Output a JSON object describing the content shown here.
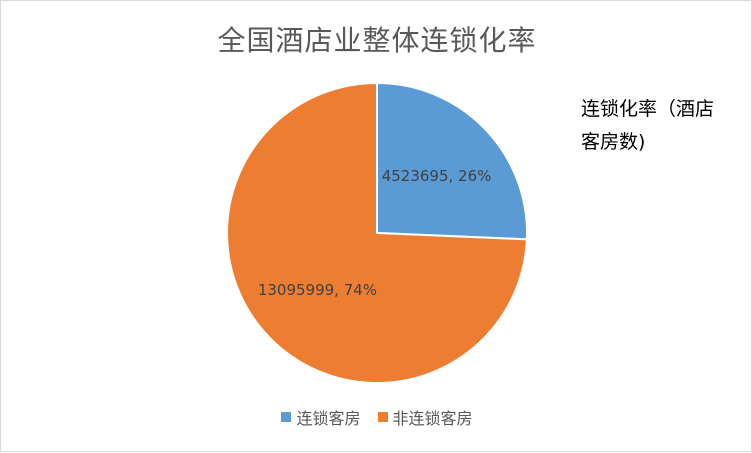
{
  "chart_data": {
    "type": "pie",
    "title": "全国酒店业整体连锁化率",
    "series_name": "连锁化率（酒店客房数)",
    "categories": [
      "连锁客房",
      "非连锁客房"
    ],
    "values": [
      4523695,
      13095999
    ],
    "percent_labels": [
      "26%",
      "74%"
    ],
    "data_labels": [
      "4523695, 26%",
      "13095999, 74%"
    ],
    "colors": [
      "#5B9BD5",
      "#ED7D31"
    ],
    "legend_position": "bottom"
  }
}
